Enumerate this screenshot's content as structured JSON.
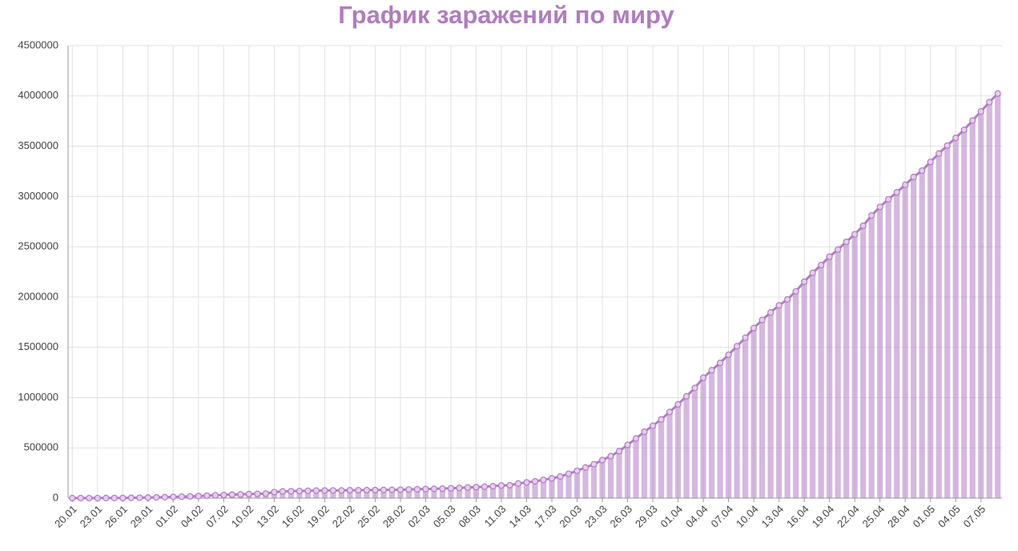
{
  "chart_data": {
    "type": "bar",
    "title": "График заражений по миру",
    "categories": [
      "20.01",
      null,
      null,
      "23.01",
      null,
      null,
      "26.01",
      null,
      null,
      "29.01",
      null,
      null,
      "01.02",
      null,
      null,
      "04.02",
      null,
      null,
      "07.02",
      null,
      null,
      "10.02",
      null,
      null,
      "13.02",
      null,
      null,
      "16.02",
      null,
      null,
      "19.02",
      null,
      null,
      "22.02",
      null,
      null,
      "25.02",
      null,
      null,
      "28.02",
      null,
      null,
      "02.03",
      null,
      null,
      "05.03",
      null,
      null,
      "08.03",
      null,
      null,
      "11.03",
      null,
      null,
      "14.03",
      null,
      null,
      "17.03",
      null,
      null,
      "20.03",
      null,
      null,
      "23.03",
      null,
      null,
      "26.03",
      null,
      null,
      "29.03",
      null,
      null,
      "01.04",
      null,
      null,
      "04.04",
      null,
      null,
      "07.04",
      null,
      null,
      "10.04",
      null,
      null,
      "13.04",
      null,
      null,
      "16.04",
      null,
      null,
      "19.04",
      null,
      null,
      "22.04",
      null,
      null,
      "25.04",
      null,
      null,
      "28.04",
      null,
      null,
      "01.05",
      null,
      null,
      "04.05",
      null,
      null,
      "07.05",
      null,
      null
    ],
    "values": [
      282,
      314,
      555,
      580,
      845,
      1317,
      2015,
      2800,
      4581,
      6058,
      7813,
      9823,
      11950,
      14553,
      17391,
      20630,
      24554,
      28276,
      31481,
      34886,
      37558,
      40554,
      43103,
      45171,
      60381,
      66908,
      69053,
      71228,
      73266,
      75153,
      75672,
      76231,
      76818,
      78579,
      78965,
      79561,
      80402,
      81376,
      82738,
      84122,
      86011,
      88369,
      90306,
      92840,
      95120,
      97886,
      101801,
      105847,
      109821,
      113590,
      118620,
      125875,
      128352,
      145205,
      156101,
      167454,
      181574,
      197102,
      214821,
      242570,
      272208,
      304507,
      336953,
      378235,
      418045,
      467653,
      529591,
      593291,
      660706,
      720117,
      782365,
      857487,
      932605,
      1013466,
      1095917,
      1197405,
      1272115,
      1345101,
      1426096,
      1511104,
      1595350,
      1691719,
      1771514,
      1846679,
      1917320,
      1976191,
      2056054,
      2152437,
      2240190,
      2317759,
      2401378,
      2472259,
      2549123,
      2623960,
      2708885,
      2811193,
      2896746,
      2971475,
      3041764,
      3116398,
      3193886,
      3256846,
      3343777,
      3427584,
      3506729,
      3583055,
      3662691,
      3755341,
      3845718,
      3938064,
      4024009
    ],
    "color": "#b27cc4",
    "ylim": [
      0,
      4500000
    ],
    "yticks": [
      0,
      500000,
      1000000,
      1500000,
      2000000,
      2500000,
      3000000,
      3500000,
      4000000,
      4500000
    ],
    "grid": true
  }
}
